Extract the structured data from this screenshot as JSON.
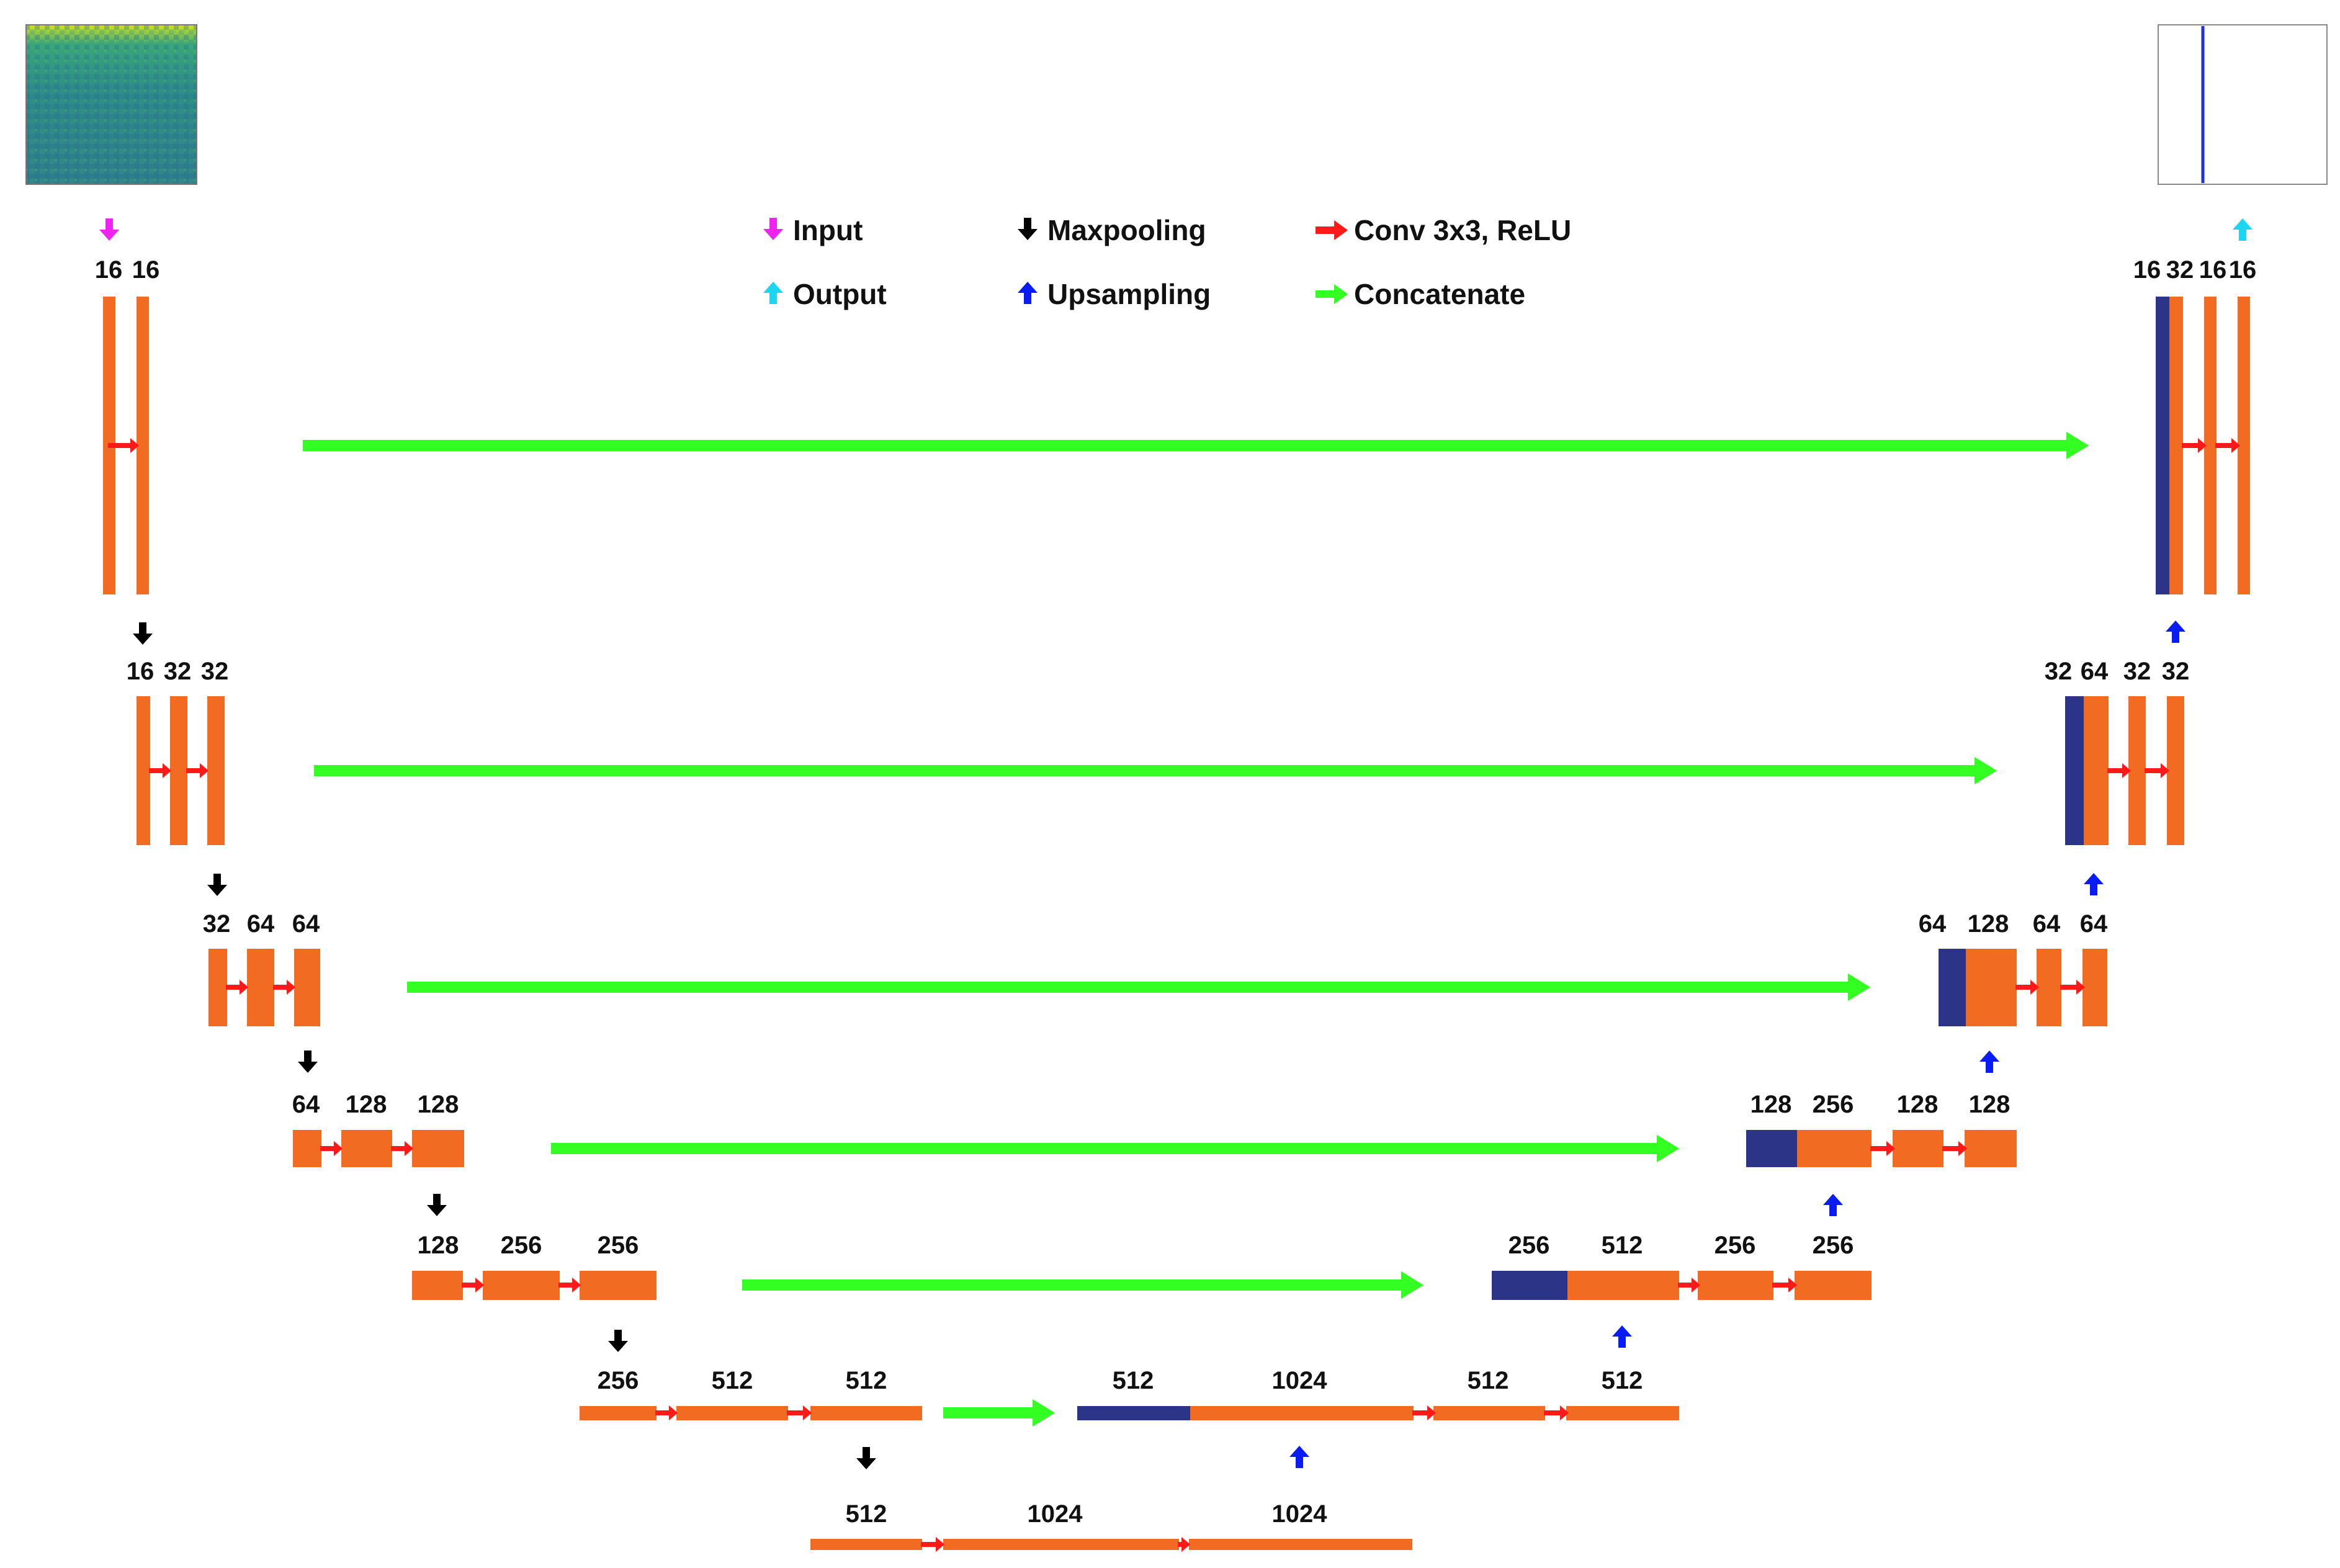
{
  "colors": {
    "block": "#f26b22",
    "skip_block": "#2b3487",
    "input_arrow": "#f024f0",
    "output_arrow": "#1ad6f0",
    "maxpool_arrow": "#000000",
    "upsample_arrow": "#0a1cf5",
    "conv_arrow": "#ff1a1a",
    "concat_arrow": "#33ff22"
  },
  "legend": {
    "input": "Input",
    "maxpooling": "Maxpooling",
    "conv": "Conv 3x3, ReLU",
    "output": "Output",
    "upsampling": "Upsampling",
    "concatenate": "Concatenate"
  },
  "encoder": [
    [
      "16",
      "16"
    ],
    [
      "16",
      "32",
      "32"
    ],
    [
      "32",
      "64",
      "64"
    ],
    [
      "64",
      "128",
      "128"
    ],
    [
      "128",
      "256",
      "256"
    ],
    [
      "256",
      "512",
      "512"
    ]
  ],
  "bottleneck": [
    "512",
    "1024",
    "1024"
  ],
  "decoder": [
    [
      "512",
      "1024",
      "512",
      "512"
    ],
    [
      "256",
      "512",
      "256",
      "256"
    ],
    [
      "128",
      "256",
      "128",
      "128"
    ],
    [
      "64",
      "128",
      "64",
      "64"
    ],
    [
      "32",
      "64",
      "32",
      "32"
    ],
    [
      "16",
      "32",
      "16",
      "16"
    ]
  ],
  "icons": {
    "input_image": "heatmap-thumbnail",
    "output_image": "line-plot-thumbnail"
  }
}
